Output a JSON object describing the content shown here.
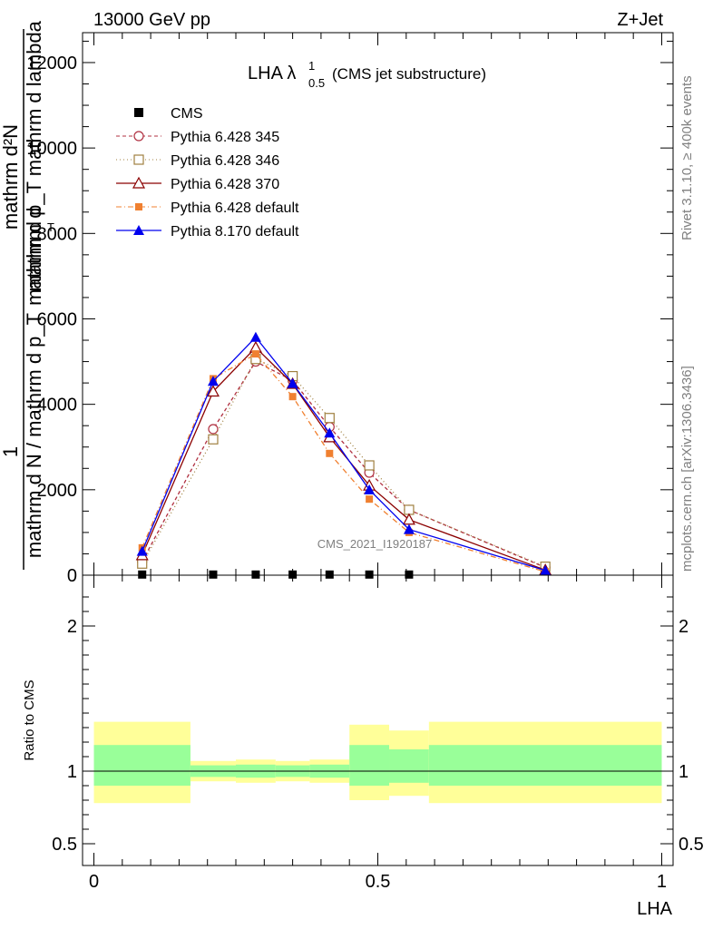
{
  "header": {
    "left": "13000 GeV pp",
    "right": "Z+Jet"
  },
  "side_labels": {
    "rivet": "Rivet 3.1.10, ≥ 400k events",
    "mcplots": "mcplots.cern.ch [arXiv:1306.3436]"
  },
  "watermark": "CMS_2021_I1920187",
  "ratio_ylabel": "Ratio to CMS",
  "colors": {
    "py345": "#b03040",
    "py346": "#a08040",
    "py370": "#8b0000",
    "pydef": "#f08030",
    "py8": "#0000ee",
    "band_outer": "#ffff99",
    "band_inner": "#99ff99"
  },
  "chart_data": {
    "type": "line",
    "title": {
      "main": "LHA λ",
      "sub": "0.5",
      "sup": "1",
      "tail": "(CMS jet substructure)"
    },
    "ylabel": {
      "num": "1",
      "num_top": "mathrm d²N",
      "den_top": "mathrm d p_T mathrm d lambda",
      "den_full": "mathrm d N / mathrm d p_T",
      "den_T": "T",
      "lead": "mathrm d"
    },
    "xlabel": "LHA",
    "xlim": [
      -0.02,
      1.02
    ],
    "ylim": [
      0,
      12700
    ],
    "ratio_ylim": [
      0.35,
      2.35
    ],
    "yticks": [
      0,
      2000,
      4000,
      6000,
      8000,
      10000,
      12000
    ],
    "ytick_labels": [
      "0",
      "2000",
      "4000",
      "6000",
      "8000",
      "10000",
      "12000"
    ],
    "xticks": [
      0,
      0.5,
      1
    ],
    "xtick_labels": [
      "0",
      "0.5",
      "1"
    ],
    "ratio_yticks": [
      0.5,
      1,
      2
    ],
    "ratio_ytick_labels": [
      "0.5",
      "1",
      "2"
    ],
    "bin_edges": [
      0,
      0.17,
      0.25,
      0.32,
      0.38,
      0.45,
      0.52,
      0.59,
      1.0
    ],
    "x": [
      0.085,
      0.21,
      0.285,
      0.35,
      0.415,
      0.485,
      0.555,
      0.795
    ],
    "series": [
      {
        "name": "CMS",
        "key": "cms",
        "values": [
          15,
          15,
          15,
          15,
          15,
          15,
          15,
          0
        ]
      },
      {
        "name": "Pythia 6.428 345",
        "key": "py345",
        "values": [
          320,
          3420,
          5000,
          4560,
          3470,
          2400,
          1530,
          180
        ]
      },
      {
        "name": "Pythia 6.428 346",
        "key": "py346",
        "values": [
          270,
          3180,
          5060,
          4660,
          3680,
          2570,
          1530,
          200
        ]
      },
      {
        "name": "Pythia 6.428 370",
        "key": "py370",
        "values": [
          470,
          4300,
          5330,
          4480,
          3230,
          2100,
          1300,
          120
        ]
      },
      {
        "name": "Pythia 6.428 default",
        "key": "pydef",
        "values": [
          640,
          4600,
          5180,
          4180,
          2850,
          1780,
          1000,
          80
        ]
      },
      {
        "name": "Pythia 8.170 default",
        "key": "py8",
        "values": [
          560,
          4540,
          5570,
          4490,
          3330,
          2000,
          1070,
          110
        ]
      }
    ],
    "ratio_band_outer": [
      [
        0.78,
        1.34
      ],
      [
        0.93,
        1.07
      ],
      [
        0.92,
        1.08
      ],
      [
        0.93,
        1.07
      ],
      [
        0.92,
        1.08
      ],
      [
        0.8,
        1.32
      ],
      [
        0.83,
        1.28
      ],
      [
        0.78,
        1.34
      ]
    ],
    "ratio_band_inner": [
      [
        0.9,
        1.18
      ],
      [
        0.96,
        1.04
      ],
      [
        0.955,
        1.045
      ],
      [
        0.96,
        1.04
      ],
      [
        0.955,
        1.045
      ],
      [
        0.9,
        1.18
      ],
      [
        0.92,
        1.15
      ],
      [
        0.9,
        1.18
      ]
    ]
  }
}
